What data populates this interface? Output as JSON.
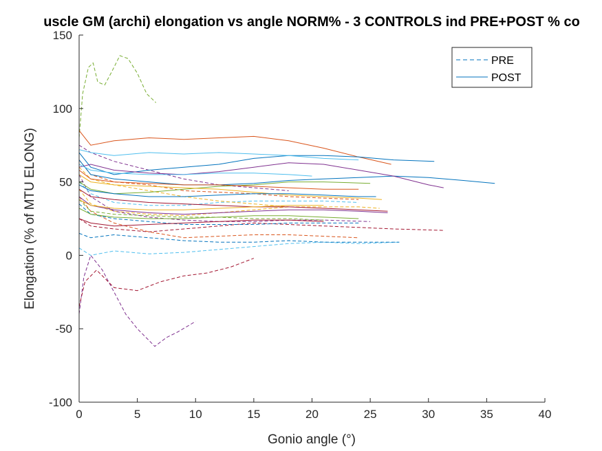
{
  "chart_data": {
    "type": "line",
    "title": "uscle GM (archi) elongation vs angle NORM% - 3 CONTROLS ind PRE+POST % co",
    "xlabel": "Gonio angle (°)",
    "ylabel": "Elongation (% of MTU ELONG)",
    "xlim": [
      0,
      40
    ],
    "ylim": [
      -100,
      150
    ],
    "xticks": [
      0,
      5,
      10,
      15,
      20,
      25,
      30,
      35,
      40
    ],
    "yticks": [
      -100,
      -50,
      0,
      50,
      100,
      150
    ],
    "grid": false,
    "legend": {
      "position": "top-right",
      "entries": [
        {
          "label": "PRE",
          "style": "dashed",
          "color": "#0072BD"
        },
        {
          "label": "POST",
          "style": "solid",
          "color": "#0072BD"
        }
      ]
    },
    "series": [
      {
        "group": "PRE",
        "color": "#77AC30",
        "x": [
          0,
          0.3,
          0.8,
          1.2,
          1.6,
          2.2,
          2.8,
          3.5,
          4.2,
          5.0,
          5.8,
          6.6
        ],
        "y": [
          80,
          110,
          128,
          131,
          118,
          116,
          125,
          136,
          134,
          124,
          110,
          104
        ]
      },
      {
        "group": "PRE",
        "color": "#7E2F8E",
        "x": [
          0,
          0.4,
          1.0,
          2.0,
          3.0,
          4.0,
          5.0,
          6.0,
          6.5,
          7.5,
          8.5,
          10.0
        ],
        "y": [
          -40,
          -15,
          0,
          -10,
          -25,
          -40,
          -50,
          -58,
          -62,
          -56,
          -52,
          -45
        ]
      },
      {
        "group": "PRE",
        "color": "#A2142F",
        "x": [
          0,
          0.5,
          1.5,
          3.0,
          5.0,
          7.0,
          9.0,
          11.0,
          13.0,
          15.0
        ],
        "y": [
          -35,
          -18,
          -10,
          -22,
          -24,
          -18,
          -14,
          -12,
          -8,
          -2
        ]
      },
      {
        "group": "PRE",
        "color": "#4DBEEE",
        "x": [
          0,
          1,
          3,
          6,
          9,
          12,
          15,
          18,
          21,
          24,
          27.5
        ],
        "y": [
          5,
          0,
          3,
          1,
          2,
          4,
          6,
          8,
          9,
          8,
          9
        ]
      },
      {
        "group": "PRE",
        "color": "#0072BD",
        "x": [
          0,
          1,
          3,
          6,
          9,
          12,
          15,
          18,
          21,
          24,
          27.5
        ],
        "y": [
          15,
          12,
          14,
          12,
          10,
          9,
          9,
          10,
          9,
          9,
          9
        ]
      },
      {
        "group": "PRE",
        "color": "#A2142F",
        "x": [
          0,
          1,
          3,
          6,
          9,
          12,
          15,
          18,
          21,
          24,
          27,
          31.3
        ],
        "y": [
          25,
          20,
          18,
          16,
          18,
          20,
          22,
          21,
          20,
          19,
          18,
          17
        ]
      },
      {
        "group": "PRE",
        "color": "#D95319",
        "x": [
          0,
          1,
          3,
          6,
          9,
          12,
          15,
          18,
          21,
          24
        ],
        "y": [
          40,
          30,
          22,
          16,
          12,
          13,
          14,
          14,
          13,
          12
        ]
      },
      {
        "group": "PRE",
        "color": "#EDB120",
        "x": [
          0,
          1,
          3,
          6,
          9,
          12,
          15,
          18,
          21,
          24,
          25.8
        ],
        "y": [
          45,
          35,
          30,
          28,
          27,
          29,
          31,
          33,
          33,
          33,
          32
        ]
      },
      {
        "group": "PRE",
        "color": "#7E2F8E",
        "x": [
          0,
          1,
          3,
          6,
          9,
          12,
          15,
          18,
          21,
          25
        ],
        "y": [
          55,
          40,
          30,
          26,
          24,
          23,
          23,
          24,
          24,
          23
        ]
      },
      {
        "group": "PRE",
        "color": "#77AC30",
        "x": [
          0,
          1,
          3,
          6,
          9,
          12,
          15,
          18,
          21
        ],
        "y": [
          38,
          30,
          28,
          27,
          26,
          26,
          25,
          25,
          24
        ]
      },
      {
        "group": "PRE",
        "color": "#0072BD",
        "x": [
          0,
          1,
          3,
          6,
          9,
          12,
          15,
          18,
          21,
          24
        ],
        "y": [
          35,
          28,
          25,
          23,
          21,
          21,
          21,
          22,
          22,
          22
        ]
      },
      {
        "group": "PRE",
        "color": "#4DBEEE",
        "x": [
          0,
          1,
          3,
          6,
          9,
          12,
          15,
          18,
          21,
          24
        ],
        "y": [
          50,
          42,
          36,
          34,
          34,
          36,
          37,
          37,
          37,
          36
        ]
      },
      {
        "group": "PRE",
        "color": "#D95319",
        "x": [
          0,
          1,
          3,
          6,
          9,
          12,
          15,
          18,
          21,
          24
        ],
        "y": [
          65,
          55,
          50,
          48,
          44,
          43,
          42,
          40,
          39,
          38
        ]
      },
      {
        "group": "PRE",
        "color": "#EDB120",
        "x": [
          0,
          1,
          3,
          6,
          9,
          12,
          15,
          18
        ],
        "y": [
          60,
          52,
          48,
          44,
          40,
          37,
          35,
          33
        ]
      },
      {
        "group": "PRE",
        "color": "#7E2F8E",
        "x": [
          0,
          1,
          3,
          6,
          9,
          12,
          15,
          18
        ],
        "y": [
          75,
          70,
          64,
          58,
          52,
          48,
          46,
          44
        ]
      },
      {
        "group": "POST",
        "color": "#D95319",
        "x": [
          0,
          1,
          3,
          6,
          9,
          12,
          15,
          18,
          21,
          24,
          26.8
        ],
        "y": [
          85,
          75,
          78,
          80,
          79,
          80,
          81,
          78,
          73,
          67,
          62
        ]
      },
      {
        "group": "POST",
        "color": "#0072BD",
        "x": [
          0,
          1,
          3,
          6,
          9,
          12,
          15,
          18,
          21,
          24,
          27,
          30.5
        ],
        "y": [
          70,
          60,
          55,
          58,
          60,
          62,
          66,
          68,
          68,
          67,
          65,
          64
        ]
      },
      {
        "group": "POST",
        "color": "#0072BD",
        "x": [
          0,
          1,
          3,
          6,
          9,
          12,
          15,
          18,
          21,
          24,
          27,
          30,
          33,
          35.7
        ],
        "y": [
          65,
          55,
          52,
          50,
          48,
          48,
          49,
          51,
          52,
          53,
          54,
          53,
          51,
          49
        ]
      },
      {
        "group": "POST",
        "color": "#7E2F8E",
        "x": [
          0,
          1,
          3,
          6,
          9,
          12,
          15,
          18,
          21,
          24,
          27,
          30,
          31.3
        ],
        "y": [
          60,
          62,
          58,
          56,
          55,
          57,
          60,
          63,
          62,
          58,
          54,
          48,
          46
        ]
      },
      {
        "group": "POST",
        "color": "#77AC30",
        "x": [
          0,
          1,
          3,
          6,
          9,
          12,
          15,
          18,
          21,
          25
        ],
        "y": [
          50,
          45,
          42,
          43,
          45,
          47,
          48,
          50,
          50,
          49
        ]
      },
      {
        "group": "POST",
        "color": "#4DBEEE",
        "x": [
          0,
          1,
          3,
          6,
          9,
          12,
          15,
          18,
          21,
          24
        ],
        "y": [
          72,
          70,
          68,
          70,
          69,
          70,
          69,
          68,
          66,
          65
        ]
      },
      {
        "group": "POST",
        "color": "#EDB120",
        "x": [
          0,
          1,
          3,
          6,
          9,
          12,
          15,
          18,
          21,
          24,
          26
        ],
        "y": [
          55,
          50,
          48,
          47,
          46,
          45,
          43,
          41,
          40,
          39,
          38
        ]
      },
      {
        "group": "POST",
        "color": "#A2142F",
        "x": [
          0,
          1,
          3,
          6,
          9,
          12,
          15,
          18,
          21,
          24,
          26.5
        ],
        "y": [
          45,
          40,
          38,
          36,
          35,
          34,
          33,
          33,
          32,
          31,
          30
        ]
      },
      {
        "group": "POST",
        "color": "#7E2F8E",
        "x": [
          0,
          1,
          3,
          6,
          9,
          12,
          15,
          18,
          21,
          24,
          26.5
        ],
        "y": [
          40,
          34,
          31,
          29,
          28,
          29,
          30,
          31,
          31,
          30,
          29
        ]
      },
      {
        "group": "POST",
        "color": "#77AC30",
        "x": [
          0,
          1,
          3,
          6,
          9,
          12,
          15,
          18,
          21,
          24
        ],
        "y": [
          32,
          28,
          26,
          25,
          25,
          26,
          27,
          27,
          26,
          25
        ]
      },
      {
        "group": "POST",
        "color": "#D95319",
        "x": [
          0,
          1,
          3,
          6,
          9,
          12,
          15,
          18,
          21,
          24
        ],
        "y": [
          58,
          52,
          50,
          49,
          48,
          48,
          47,
          46,
          45,
          45
        ]
      },
      {
        "group": "POST",
        "color": "#4DBEEE",
        "x": [
          0,
          1,
          3,
          6,
          9,
          12,
          15,
          18,
          20
        ],
        "y": [
          62,
          58,
          56,
          55,
          55,
          56,
          56,
          55,
          54
        ]
      },
      {
        "group": "POST",
        "color": "#0072BD",
        "x": [
          0,
          1,
          3,
          6,
          9,
          12,
          15,
          18,
          21,
          24,
          25.5
        ],
        "y": [
          48,
          44,
          42,
          40,
          40,
          41,
          42,
          42,
          41,
          40,
          40
        ]
      },
      {
        "group": "POST",
        "color": "#EDB120",
        "x": [
          0,
          1,
          3,
          6,
          9,
          12,
          15,
          18,
          21
        ],
        "y": [
          38,
          34,
          32,
          31,
          31,
          32,
          33,
          34,
          34
        ]
      },
      {
        "group": "POST",
        "color": "#A2142F",
        "x": [
          0,
          1,
          3,
          6,
          9,
          12,
          15,
          18,
          21
        ],
        "y": [
          25,
          22,
          20,
          21,
          22,
          23,
          24,
          24,
          23
        ]
      }
    ]
  }
}
